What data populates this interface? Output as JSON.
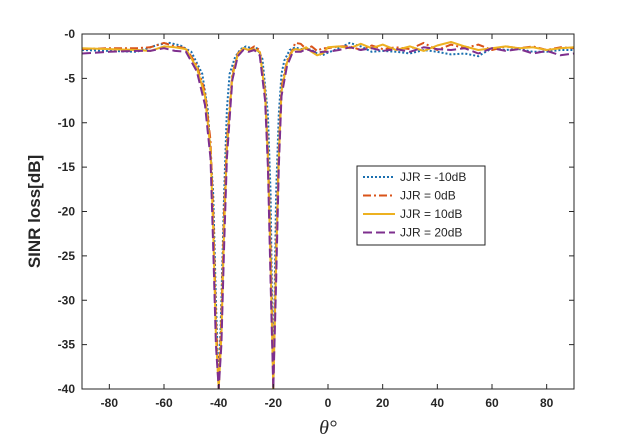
{
  "chart_data": {
    "type": "line",
    "title": "",
    "xlabel": "θ°",
    "ylabel": "SINR loss[dB]",
    "xlim": [
      -90,
      90
    ],
    "ylim": [
      -40,
      0
    ],
    "xticks": [
      -80,
      -60,
      -40,
      -20,
      0,
      20,
      40,
      60,
      80
    ],
    "yticks": [
      0,
      -5,
      -10,
      -15,
      -20,
      -25,
      -30,
      -35,
      -40
    ],
    "xtick_labels": [
      "-80",
      "-60",
      "-40",
      "-20",
      "0",
      "20",
      "40",
      "60",
      "80"
    ],
    "ytick_labels": [
      "-0",
      "-5",
      "-10",
      "-15",
      "-20",
      "-25",
      "-30",
      "-35",
      "-40"
    ],
    "grid": false,
    "legend_position": "center-right",
    "series": [
      {
        "name": "JJR = -10dB",
        "color": "#1a6faf",
        "dash": "2,2",
        "x": [
          -90,
          -80,
          -70,
          -62,
          -58,
          -54,
          -50,
          -46,
          -44,
          -42,
          -41,
          -40,
          -39,
          -38,
          -37,
          -36,
          -34,
          -32,
          -30,
          -28,
          -26,
          -24,
          -22,
          -21,
          -20,
          -19,
          -18,
          -17,
          -16,
          -14,
          -12,
          -10,
          -8,
          -6,
          -4,
          -2,
          0,
          4,
          8,
          12,
          16,
          20,
          25,
          30,
          35,
          40,
          45,
          50,
          55,
          60,
          65,
          70,
          75,
          80,
          85,
          90
        ],
        "y": [
          -1.8,
          -1.9,
          -2.0,
          -1.2,
          -1.0,
          -1.3,
          -2.0,
          -4.5,
          -8.5,
          -18,
          -30,
          -40,
          -30,
          -18,
          -8.5,
          -4.5,
          -2.6,
          -1.7,
          -1.4,
          -1.6,
          -1.6,
          -2.8,
          -9,
          -18,
          -40,
          -18,
          -9,
          -4.5,
          -3,
          -1.8,
          -1.5,
          -1.7,
          -1.6,
          -1.8,
          -2.2,
          -2.4,
          -2.1,
          -1.6,
          -1.0,
          -1.4,
          -2.0,
          -1.9,
          -2.0,
          -2.2,
          -1.8,
          -2.0,
          -2.3,
          -2.2,
          -2.5,
          -1.6,
          -1.8,
          -1.7,
          -2.0,
          -2.0,
          -1.8,
          -1.8
        ]
      },
      {
        "name": "JJR = 0dB",
        "color": "#d95319",
        "dash": "8,3,2,3",
        "x": [
          -90,
          -80,
          -70,
          -65,
          -60,
          -56,
          -52,
          -48,
          -45,
          -43,
          -42,
          -41,
          -40,
          -39,
          -38,
          -37,
          -35,
          -33,
          -31,
          -29,
          -27,
          -25,
          -23,
          -22,
          -21,
          -20,
          -19,
          -18,
          -17,
          -15,
          -13,
          -12,
          -10,
          -8,
          -6,
          -4,
          -2,
          0,
          4,
          8,
          12,
          16,
          20,
          25,
          30,
          35,
          40,
          45,
          50,
          55,
          60,
          65,
          70,
          75,
          80,
          85,
          90
        ],
        "y": [
          -1.7,
          -1.6,
          -1.6,
          -1.5,
          -1.0,
          -1.4,
          -1.6,
          -3.5,
          -6.5,
          -12,
          -20,
          -32,
          -40,
          -32,
          -20,
          -12,
          -4.5,
          -2.2,
          -1.6,
          -1.8,
          -1.4,
          -1.8,
          -6.5,
          -13,
          -24,
          -40,
          -24,
          -13,
          -6,
          -3,
          -1.8,
          -1.0,
          -1.1,
          -1.7,
          -1.4,
          -1.9,
          -1.6,
          -1.6,
          -1.4,
          -1.4,
          -1.8,
          -1.3,
          -1.7,
          -1.5,
          -1.7,
          -1.0,
          -1.8,
          -1.2,
          -1.6,
          -1.2,
          -1.8,
          -1.4,
          -1.6,
          -1.4,
          -1.8,
          -1.5,
          -1.6
        ]
      },
      {
        "name": "JJR = 10dB",
        "color": "#edb120",
        "dash": "",
        "x": [
          -90,
          -80,
          -70,
          -65,
          -60,
          -56,
          -52,
          -48,
          -45,
          -43,
          -42,
          -41,
          -40,
          -39,
          -38,
          -37,
          -35,
          -33,
          -31,
          -29,
          -27,
          -25,
          -23,
          -22,
          -21,
          -20,
          -19,
          -18,
          -17,
          -15,
          -13,
          -12,
          -10,
          -8,
          -6,
          -4,
          -2,
          0,
          4,
          8,
          12,
          16,
          20,
          25,
          30,
          35,
          40,
          45,
          50,
          55,
          60,
          65,
          70,
          75,
          80,
          85,
          90
        ],
        "y": [
          -1.6,
          -1.7,
          -1.8,
          -1.9,
          -1.4,
          -1.5,
          -1.7,
          -3.8,
          -7,
          -13,
          -22,
          -34,
          -40,
          -34,
          -22,
          -13,
          -4.8,
          -2.3,
          -1.6,
          -1.8,
          -1.7,
          -2.0,
          -6.8,
          -14,
          -26,
          -40,
          -26,
          -14,
          -6.5,
          -3.2,
          -1.9,
          -1.7,
          -1.8,
          -1.5,
          -2.0,
          -2.4,
          -2.2,
          -1.5,
          -1.4,
          -1.6,
          -1.1,
          -1.6,
          -1.2,
          -1.8,
          -1.4,
          -1.9,
          -1.3,
          -0.9,
          -1.4,
          -1.8,
          -1.6,
          -1.4,
          -1.6,
          -1.5,
          -1.8,
          -1.6,
          -1.5
        ]
      },
      {
        "name": "JJR = 20dB",
        "color": "#7e2f8e",
        "dash": "9,4",
        "x": [
          -90,
          -80,
          -70,
          -65,
          -60,
          -56,
          -52,
          -48,
          -45,
          -43,
          -42,
          -41,
          -40,
          -39,
          -38,
          -37,
          -35,
          -33,
          -31,
          -29,
          -27,
          -25,
          -23,
          -22,
          -21,
          -20,
          -19,
          -18,
          -17,
          -15,
          -13,
          -12,
          -10,
          -8,
          -6,
          -4,
          -2,
          0,
          4,
          8,
          12,
          16,
          20,
          25,
          30,
          35,
          40,
          45,
          50,
          55,
          60,
          65,
          70,
          75,
          80,
          85,
          90
        ],
        "y": [
          -2.2,
          -2.0,
          -1.9,
          -1.9,
          -1.6,
          -1.9,
          -2.0,
          -4.2,
          -8,
          -14,
          -24,
          -35,
          -40,
          -35,
          -24,
          -14,
          -5.2,
          -2.5,
          -1.8,
          -2.0,
          -1.8,
          -2.4,
          -7.5,
          -15,
          -28,
          -40,
          -28,
          -15,
          -7,
          -3.6,
          -2.1,
          -2.0,
          -2.0,
          -1.7,
          -1.9,
          -2.1,
          -2.0,
          -2.0,
          -1.8,
          -1.5,
          -1.8,
          -1.6,
          -1.9,
          -1.7,
          -2.0,
          -1.5,
          -1.7,
          -1.8,
          -1.6,
          -2.2,
          -1.6,
          -1.9,
          -1.7,
          -2.2,
          -1.9,
          -2.4,
          -2.2
        ]
      }
    ]
  }
}
